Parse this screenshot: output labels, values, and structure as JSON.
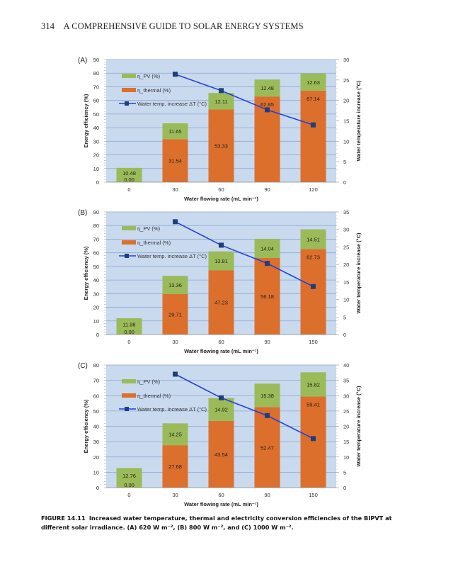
{
  "page": {
    "page_number": "314",
    "running_head": "A COMPREHENSIVE GUIDE TO SOLAR ENERGY SYSTEMS"
  },
  "figure": {
    "caption_label": "FIGURE 14.11",
    "caption_text": "Increased water temperature, thermal and electricity conversion efficiencies of the BIPVT at different solar irradiance. (A) 620 W m⁻², (B) 800 W m⁻², and (C) 1000 W m⁻²."
  },
  "colors": {
    "plot_bg": "#c9d9ee",
    "pv": "#9bbb59",
    "thermal": "#dc6f2c",
    "line": "#1f3fe0",
    "marker": "#1f3f77",
    "grid": "#8ea9d1"
  },
  "chart_data": [
    {
      "type": "bar",
      "panel_label": "(A)",
      "stacked": true,
      "categories": [
        "0",
        "30",
        "60",
        "90",
        "120"
      ],
      "series": [
        {
          "name": "η_thermal (%)",
          "kind": "bar",
          "axis": "left",
          "values": [
            0.0,
            31.54,
            53.33,
            62.85,
            67.14
          ],
          "labels": [
            "0.00",
            "31.54",
            "53.33",
            "62.85",
            "67.14"
          ]
        },
        {
          "name": "η_PV (%)",
          "kind": "bar",
          "axis": "left",
          "values": [
            10.48,
            11.65,
            12.11,
            12.48,
            12.63
          ],
          "labels": [
            "10.48",
            "11.65",
            "12.11",
            "12.48",
            "12.63"
          ]
        },
        {
          "name": "Water temp. increase ΔT (°C)",
          "kind": "line",
          "axis": "right",
          "values": [
            null,
            26.4,
            22.4,
            17.7,
            14.0
          ]
        }
      ],
      "xlabel": "Water flowing rate (mL min⁻¹)",
      "ylabel": "Energy efficiency (%)",
      "y2label": "Water temperature increase (°C)",
      "ylim": [
        0,
        90
      ],
      "yticks": [
        0,
        10,
        20,
        30,
        40,
        50,
        60,
        70,
        80,
        90
      ],
      "y2lim": [
        0,
        30
      ],
      "y2ticks": [
        0,
        5,
        10,
        15,
        20,
        25,
        30
      ],
      "grid": true,
      "legend_position": "top-left"
    },
    {
      "type": "bar",
      "panel_label": "(B)",
      "stacked": true,
      "categories": [
        "0",
        "30",
        "60",
        "90",
        "150"
      ],
      "series": [
        {
          "name": "η_thermal (%)",
          "kind": "bar",
          "axis": "left",
          "values": [
            0.0,
            29.71,
            47.23,
            56.18,
            62.73
          ],
          "labels": [
            "0.00",
            "29.71",
            "47.23",
            "56.18",
            "62.73"
          ]
        },
        {
          "name": "η_PV (%)",
          "kind": "bar",
          "axis": "left",
          "values": [
            11.98,
            13.36,
            13.81,
            14.04,
            14.51
          ],
          "labels": [
            "11.98",
            "13.36",
            "13.81",
            "14.04",
            "14.51"
          ]
        },
        {
          "name": "Water temp. increase ΔT (°C)",
          "kind": "line",
          "axis": "right",
          "values": [
            null,
            32.2,
            25.5,
            20.3,
            13.7
          ]
        }
      ],
      "xlabel": "Water flowing rate (mL min⁻¹)",
      "ylabel": "Energy efficiency (%)",
      "y2label": "Water temperature increase (°C)",
      "ylim": [
        0,
        90
      ],
      "yticks": [
        0,
        10,
        20,
        30,
        40,
        50,
        60,
        70,
        80,
        90
      ],
      "y2lim": [
        0,
        35
      ],
      "y2ticks": [
        0,
        5,
        10,
        15,
        20,
        25,
        30,
        35
      ],
      "grid": true,
      "legend_position": "top-left"
    },
    {
      "type": "bar",
      "panel_label": "(C)",
      "stacked": true,
      "categories": [
        "0",
        "30",
        "60",
        "90",
        "150"
      ],
      "series": [
        {
          "name": "η_thermal (%)",
          "kind": "bar",
          "axis": "left",
          "values": [
            0.0,
            27.68,
            43.54,
            52.47,
            59.41
          ],
          "labels": [
            "0.00",
            "27.68",
            "43.54",
            "52.47",
            "59.41"
          ]
        },
        {
          "name": "η_PV (%)",
          "kind": "bar",
          "axis": "left",
          "values": [
            12.76,
            14.25,
            14.92,
            15.38,
            15.82
          ],
          "labels": [
            "12.76",
            "14.25",
            "14.92",
            "15.38",
            "15.82"
          ]
        },
        {
          "name": "Water temp. increase ΔT (°C)",
          "kind": "line",
          "axis": "right",
          "values": [
            null,
            37.0,
            29.3,
            23.5,
            16.0
          ]
        }
      ],
      "xlabel": "Water flowing rate (mL min⁻¹)",
      "ylabel": "Energy efficiency (%)",
      "y2label": "Water temperature increase (°C)",
      "ylim": [
        0,
        80
      ],
      "yticks": [
        0,
        10,
        20,
        30,
        40,
        50,
        60,
        70,
        80
      ],
      "y2lim": [
        0,
        40
      ],
      "y2ticks": [
        0,
        5,
        10,
        15,
        20,
        25,
        30,
        35,
        40
      ],
      "grid": true,
      "legend_position": "top-left"
    }
  ]
}
